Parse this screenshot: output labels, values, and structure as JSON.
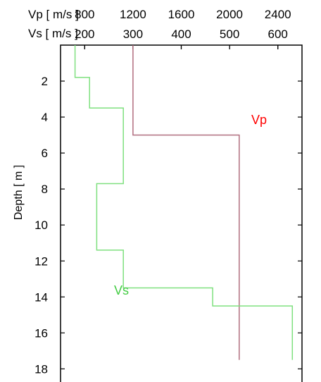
{
  "chart_data": {
    "type": "line",
    "title": "",
    "ylabel": "Depth [ m ]",
    "ylim": [
      0,
      19.2
    ],
    "y_reversed": true,
    "y_ticks": [
      2,
      4,
      6,
      8,
      10,
      12,
      14,
      16,
      18
    ],
    "vp_axis": {
      "label": "Vp [ m/s ]",
      "range": [
        600,
        2600
      ],
      "ticks": [
        800,
        1200,
        1600,
        2000,
        2400
      ]
    },
    "vs_axis": {
      "label": "Vs [ m/s ]",
      "range": [
        150,
        650
      ],
      "ticks": [
        200,
        300,
        400,
        500,
        600
      ]
    },
    "grid": false,
    "series": [
      {
        "name": "Vp",
        "axis": "vp",
        "color": "#b06d7e",
        "label_color": "#ff0000",
        "profile": [
          {
            "v": 1200,
            "top": 0,
            "bottom": 5
          },
          {
            "v": 2080,
            "top": 5,
            "bottom": 17.5
          }
        ]
      },
      {
        "name": "Vs",
        "axis": "vs",
        "color": "#7fe07f",
        "label_color": "#44cc44",
        "profile": [
          {
            "v": 180,
            "top": 0,
            "bottom": 1.8
          },
          {
            "v": 210,
            "top": 1.8,
            "bottom": 3.5
          },
          {
            "v": 280,
            "top": 3.5,
            "bottom": 7.7
          },
          {
            "v": 225,
            "top": 7.7,
            "bottom": 11.4
          },
          {
            "v": 280,
            "top": 11.4,
            "bottom": 13.5
          },
          {
            "v": 465,
            "top": 13.5,
            "bottom": 14.5
          },
          {
            "v": 630,
            "top": 14.5,
            "bottom": 17.5
          }
        ]
      }
    ]
  }
}
